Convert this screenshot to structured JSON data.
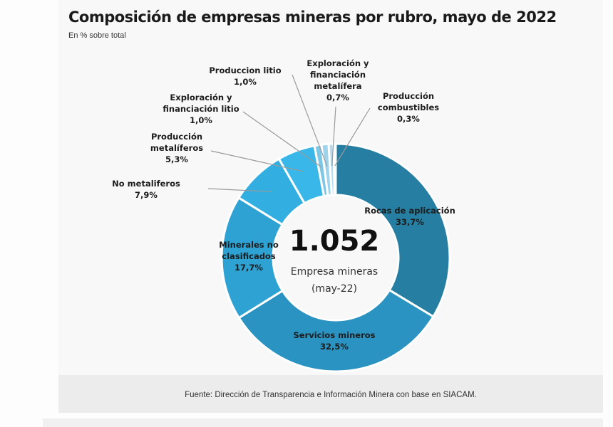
{
  "header": {
    "title": "Composición de empresas mineras por rubro, mayo de 2022",
    "subtitle": "En % sobre total"
  },
  "center": {
    "value": "1.052",
    "line1": "Empresa mineras",
    "line2": "(may-22)"
  },
  "footer": {
    "source": "Fuente: Dirección de Transparencia e Información Minera con base en SIACAM."
  },
  "chart_data": {
    "type": "pie",
    "variant": "donut",
    "title": "Composición de empresas mineras por rubro, mayo de 2022",
    "subtitle": "En % sobre total",
    "total": 1052,
    "unit": "%",
    "slices": [
      {
        "name": "Rocas de aplicación",
        "value": 33.7,
        "label": "33,7%",
        "color": "#267fa2",
        "label_lines": [
          "Rocas de aplicación"
        ],
        "placement": "inside"
      },
      {
        "name": "Servicios mineros",
        "value": 32.5,
        "label": "32,5%",
        "color": "#2a93c1",
        "label_lines": [
          "Servicios mineros"
        ],
        "placement": "inside"
      },
      {
        "name": "Minerales no clasificados",
        "value": 17.7,
        "label": "17,7%",
        "color": "#2ea2d3",
        "label_lines": [
          "Minerales no",
          "clasificados"
        ],
        "placement": "inside"
      },
      {
        "name": "No metaliferos",
        "value": 7.9,
        "label": "7,9%",
        "color": "#33aee0",
        "label_lines": [
          "No metaliferos"
        ],
        "placement": "outside"
      },
      {
        "name": "Producción metalíferos",
        "value": 5.3,
        "label": "5,3%",
        "color": "#39b7e8",
        "label_lines": [
          "Producción",
          "metalíferos"
        ],
        "placement": "outside"
      },
      {
        "name": "Exploración y financiación litio",
        "value": 1.0,
        "label": "1,0%",
        "color": "#7cc6e6",
        "label_lines": [
          "Exploración y",
          "financiación litio"
        ],
        "placement": "outside"
      },
      {
        "name": "Produccion litio",
        "value": 1.0,
        "label": "1,0%",
        "color": "#9ed3ec",
        "label_lines": [
          "Produccion litio"
        ],
        "placement": "outside"
      },
      {
        "name": "Exploración y financiación metalífera",
        "value": 0.7,
        "label": "0,7%",
        "color": "#b5dcef",
        "label_lines": [
          "Exploración y",
          "financiación",
          "metalífera"
        ],
        "placement": "outside"
      },
      {
        "name": "Producción combustibles",
        "value": 0.3,
        "label": "0,3%",
        "color": "#cfe8f4",
        "label_lines": [
          "Producción",
          "combustibles"
        ],
        "placement": "outside"
      }
    ]
  }
}
